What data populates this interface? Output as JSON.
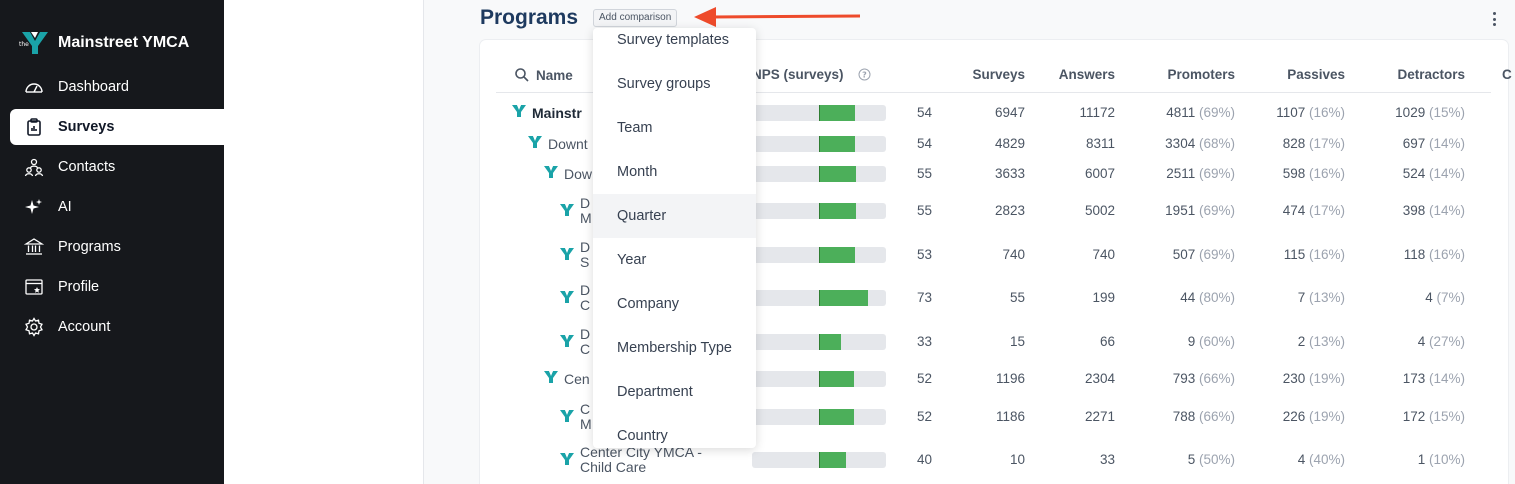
{
  "sidebar": {
    "brand": "Mainstreet YMCA",
    "items": [
      {
        "label": "Dashboard",
        "icon": "gauge-icon"
      },
      {
        "label": "Surveys",
        "icon": "clipboard-icon",
        "active": true
      },
      {
        "label": "Contacts",
        "icon": "contacts-icon"
      },
      {
        "label": "AI",
        "icon": "sparkle-icon"
      },
      {
        "label": "Programs",
        "icon": "institution-icon"
      },
      {
        "label": "Profile",
        "icon": "profile-icon"
      },
      {
        "label": "Account",
        "icon": "gear-icon"
      }
    ]
  },
  "header": {
    "title": "Programs",
    "add_comparison": "Add comparison"
  },
  "colors": {
    "sidebar_bg": "#16181c",
    "title": "#1e3a5f",
    "arrow": "#ee4b2b",
    "bar_fill": "#4caf5a",
    "ymca_teal": "#1aa3a8"
  },
  "table": {
    "columns": {
      "name": "Name",
      "nps": "NPS (surveys)",
      "surveys": "Surveys",
      "answers": "Answers",
      "promoters": "Promoters",
      "passives": "Passives",
      "detractors": "Detractors",
      "extra": "C"
    },
    "rows": [
      {
        "name": "Mainstr",
        "nps": "54",
        "nps_value": 54,
        "surveys": "6947",
        "answers": "11172",
        "promoters": "4811",
        "promoters_pct": "(69%)",
        "passives": "1107",
        "passives_pct": "(16%)",
        "detractors": "1029",
        "detractors_pct": "(15%)"
      },
      {
        "name": "Downt",
        "nps": "54",
        "nps_value": 54,
        "surveys": "4829",
        "answers": "8311",
        "promoters": "3304",
        "promoters_pct": "(68%)",
        "passives": "828",
        "passives_pct": "(17%)",
        "detractors": "697",
        "detractors_pct": "(14%)"
      },
      {
        "name": "Dow",
        "nps": "55",
        "nps_value": 55,
        "surveys": "3633",
        "answers": "6007",
        "promoters": "2511",
        "promoters_pct": "(69%)",
        "passives": "598",
        "passives_pct": "(16%)",
        "detractors": "524",
        "detractors_pct": "(14%)"
      },
      {
        "name_line1": "D",
        "name_line2": "M",
        "nps": "55",
        "nps_value": 55,
        "surveys": "2823",
        "answers": "5002",
        "promoters": "1951",
        "promoters_pct": "(69%)",
        "passives": "474",
        "passives_pct": "(17%)",
        "detractors": "398",
        "detractors_pct": "(14%)"
      },
      {
        "name_line1": "D",
        "name_line2": "S",
        "nps": "53",
        "nps_value": 53,
        "surveys": "740",
        "answers": "740",
        "promoters": "507",
        "promoters_pct": "(69%)",
        "passives": "115",
        "passives_pct": "(16%)",
        "detractors": "118",
        "detractors_pct": "(16%)"
      },
      {
        "name_line1": "D",
        "name_line2": "C",
        "nps": "73",
        "nps_value": 73,
        "surveys": "55",
        "answers": "199",
        "promoters": "44",
        "promoters_pct": "(80%)",
        "passives": "7",
        "passives_pct": "(13%)",
        "detractors": "4",
        "detractors_pct": "(7%)"
      },
      {
        "name_line1": "D",
        "name_line2": "C",
        "nps": "33",
        "nps_value": 33,
        "surveys": "15",
        "answers": "66",
        "promoters": "9",
        "promoters_pct": "(60%)",
        "passives": "2",
        "passives_pct": "(13%)",
        "detractors": "4",
        "detractors_pct": "(27%)"
      },
      {
        "name": "Cen",
        "nps": "52",
        "nps_value": 52,
        "surveys": "1196",
        "answers": "2304",
        "promoters": "793",
        "promoters_pct": "(66%)",
        "passives": "230",
        "passives_pct": "(19%)",
        "detractors": "173",
        "detractors_pct": "(14%)"
      },
      {
        "name_line1": "C",
        "name_line2": "M",
        "nps": "52",
        "nps_value": 52,
        "surveys": "1186",
        "answers": "2271",
        "promoters": "788",
        "promoters_pct": "(66%)",
        "passives": "226",
        "passives_pct": "(19%)",
        "detractors": "172",
        "detractors_pct": "(15%)"
      },
      {
        "name_line1": "Center City YMCA -",
        "name_line2": "Child Care",
        "nps": "40",
        "nps_value": 40,
        "surveys": "10",
        "answers": "33",
        "promoters": "5",
        "promoters_pct": "(50%)",
        "passives": "4",
        "passives_pct": "(40%)",
        "detractors": "1",
        "detractors_pct": "(10%)"
      }
    ]
  },
  "dropdown": {
    "items": [
      "Survey templates",
      "Survey groups",
      "Team",
      "Month",
      "Quarter",
      "Year",
      "Company",
      "Membership Type",
      "Department",
      "Country"
    ],
    "hovered": "Quarter"
  }
}
